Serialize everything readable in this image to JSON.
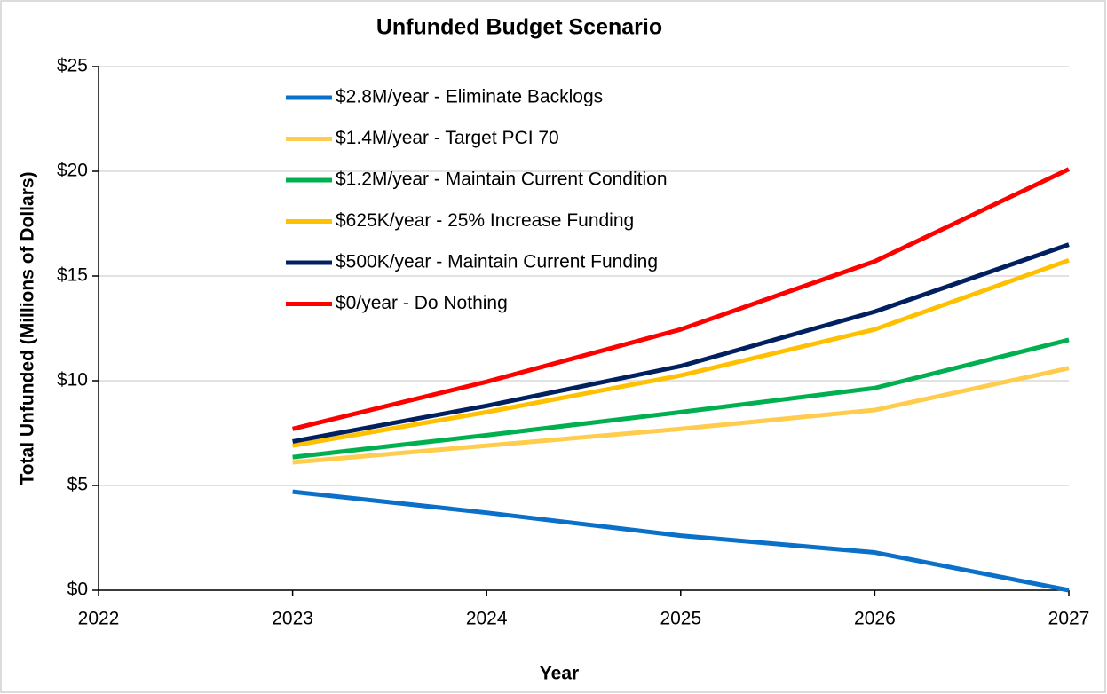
{
  "chart_data": {
    "type": "line",
    "title": "Unfunded Budget Scenario",
    "x_label": "Year",
    "y_label": "Total Unfunded (Millions of Dollars)",
    "x": [
      2023,
      2024,
      2025,
      2026,
      2027
    ],
    "xlim": [
      2022,
      2027
    ],
    "xticks": [
      2022,
      2023,
      2024,
      2025,
      2026,
      2027
    ],
    "ylim": [
      0,
      25
    ],
    "yticks": [
      {
        "value": 0,
        "label": "$0"
      },
      {
        "value": 5,
        "label": "$5"
      },
      {
        "value": 10,
        "label": "$10"
      },
      {
        "value": 15,
        "label": "$15"
      },
      {
        "value": 20,
        "label": "$20"
      },
      {
        "value": 25,
        "label": "$25"
      }
    ],
    "grid": true,
    "legend": "upper left",
    "series": [
      {
        "name": "$2.8M/year - Eliminate Backlogs",
        "color": "#0a70c8",
        "values": [
          4.7,
          3.7,
          2.6,
          1.8,
          0
        ]
      },
      {
        "name": "$1.4M/year - Target PCI 70",
        "color": "#ffcc4d",
        "values": [
          6.1,
          6.9,
          7.7,
          8.6,
          10.6
        ]
      },
      {
        "name": "$1.2M/year - Maintain Current Condition",
        "color": "#00b050",
        "values": [
          6.35,
          7.4,
          8.5,
          9.65,
          11.95
        ]
      },
      {
        "name": "$625K/year - 25% Increase Funding",
        "color": "#ffc000",
        "values": [
          6.9,
          8.5,
          10.25,
          12.45,
          15.75
        ]
      },
      {
        "name": "$500K/year - Maintain Current Funding",
        "color": "#002060",
        "values": [
          7.1,
          8.8,
          10.7,
          13.3,
          16.5
        ]
      },
      {
        "name": "$0/year - Do Nothing",
        "color": "#ff0000",
        "values": [
          7.7,
          9.95,
          12.45,
          15.7,
          20.1
        ]
      }
    ]
  }
}
